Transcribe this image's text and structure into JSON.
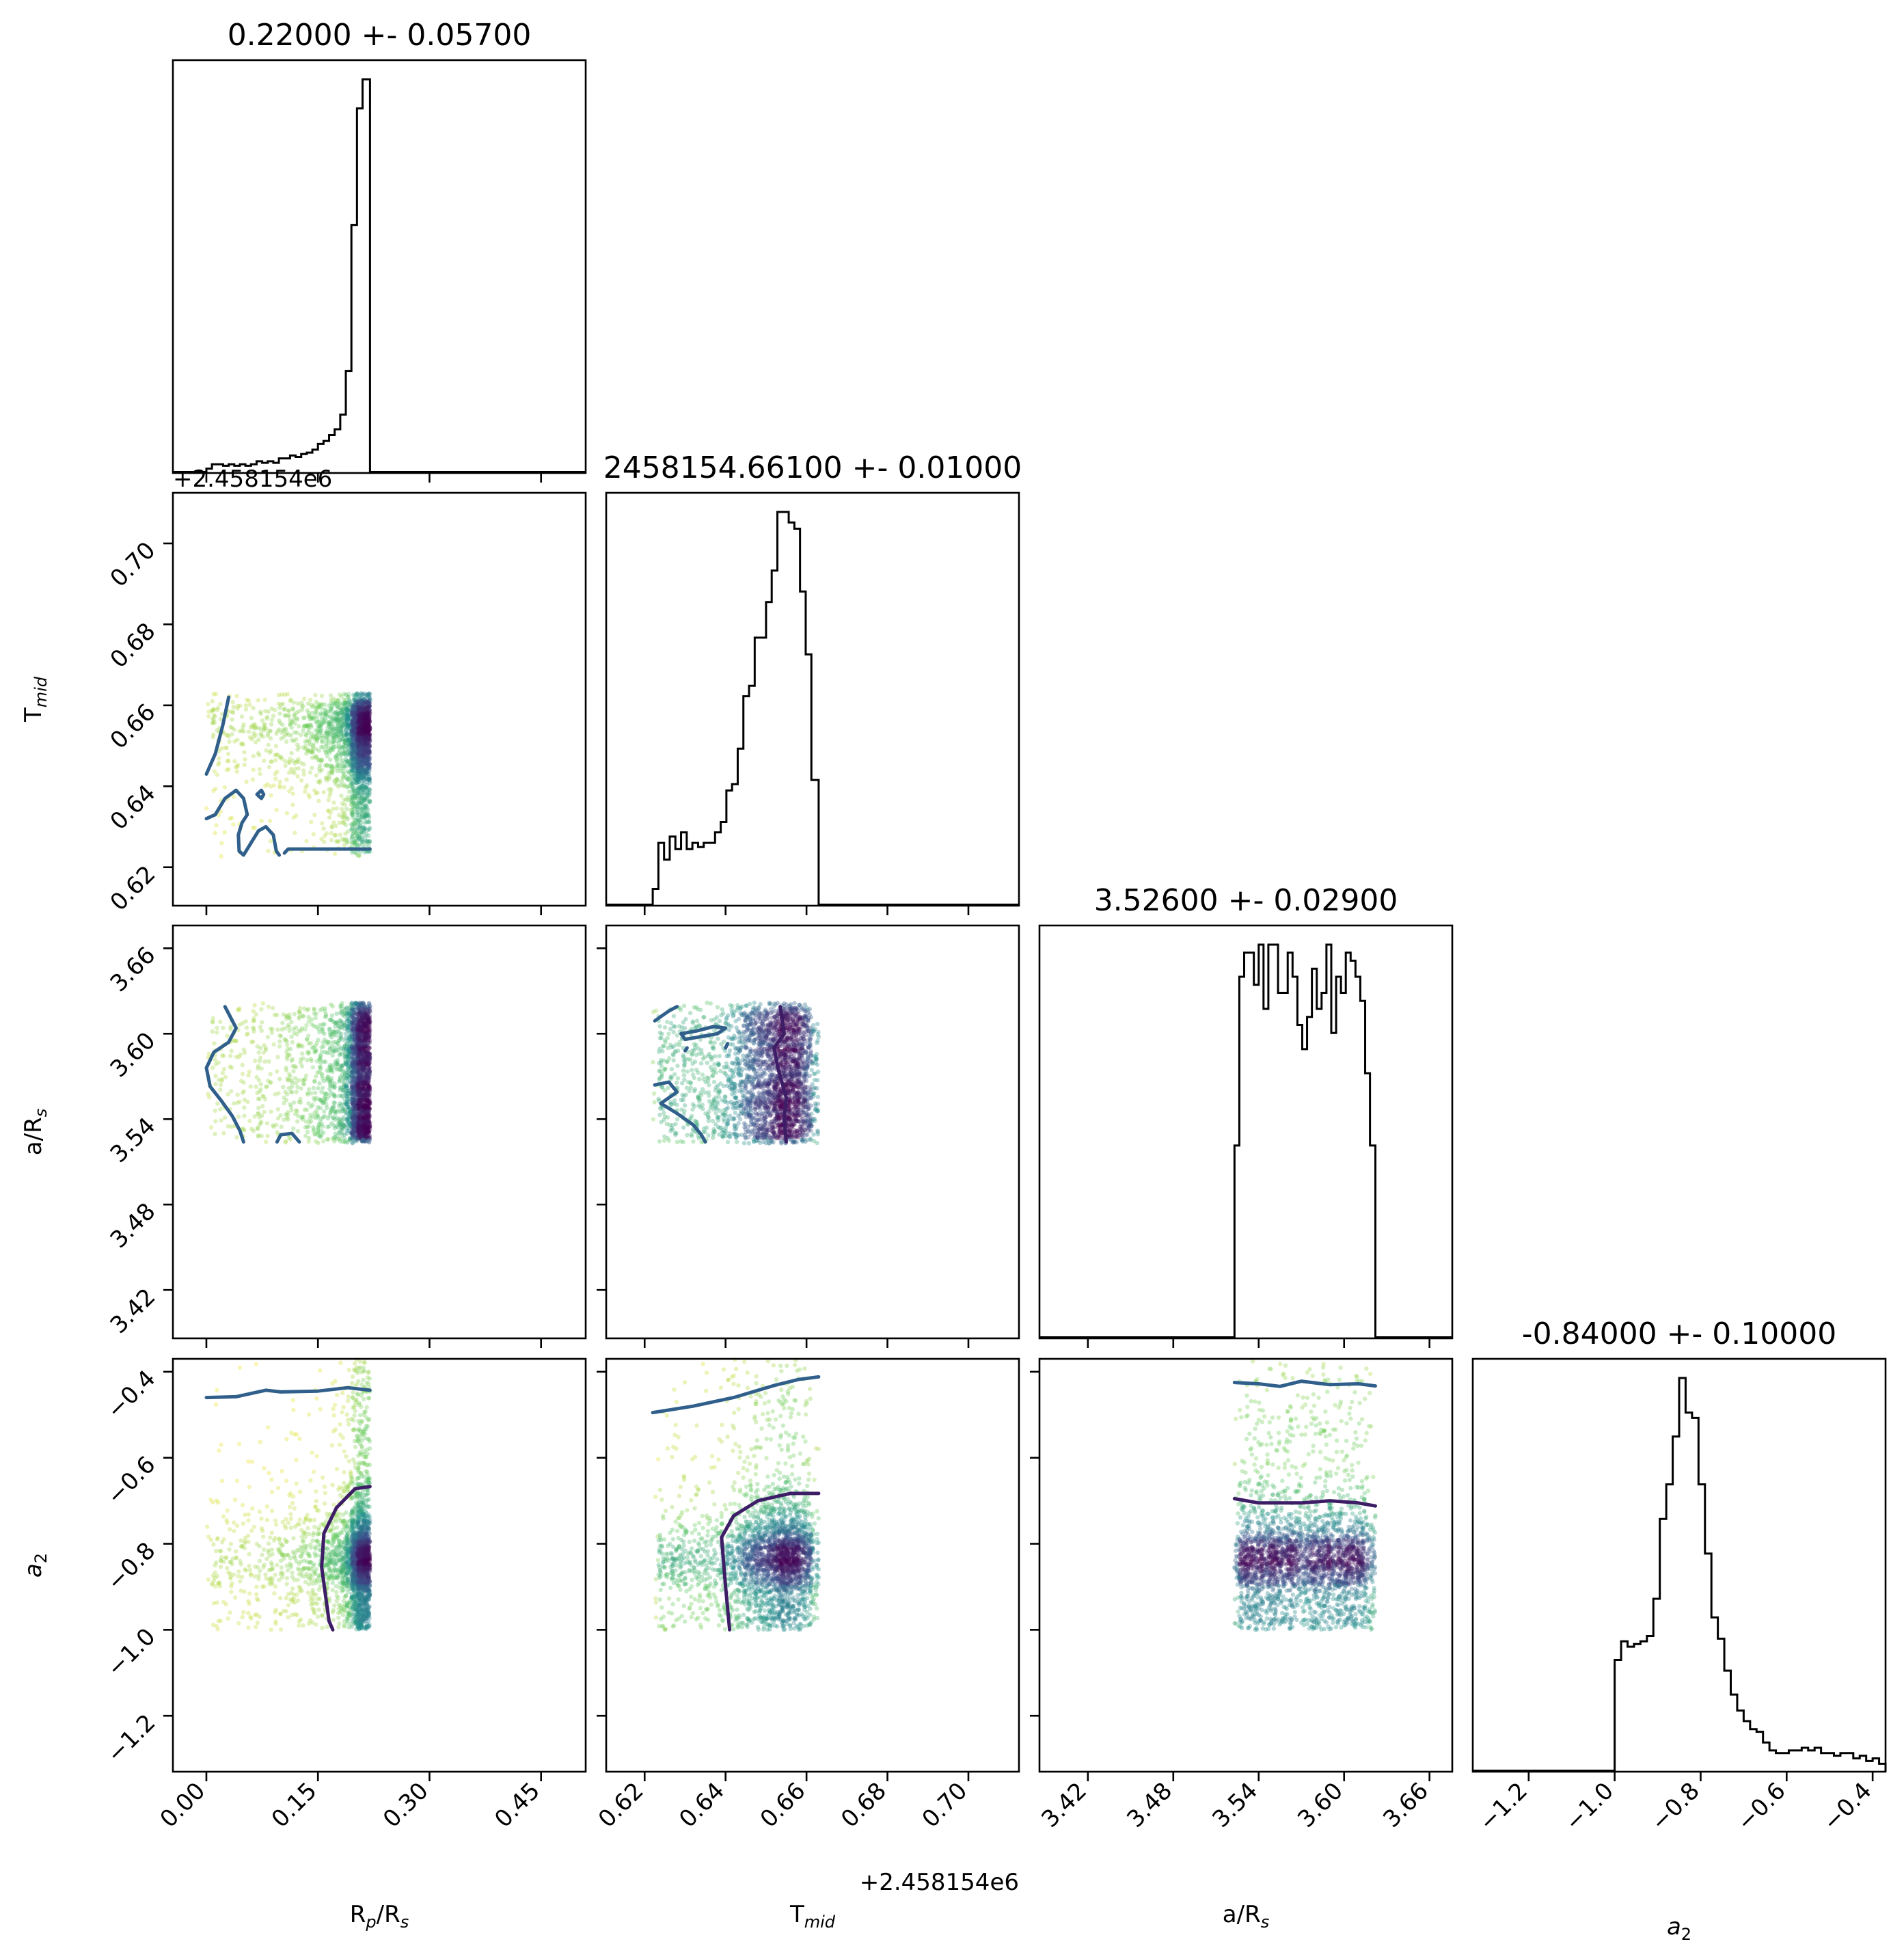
{
  "chart_data": {
    "type": "corner",
    "params": [
      {
        "key": "rp",
        "title": "0.22000 +- 0.05700",
        "xlabel": "R$_p$/R$_s$",
        "xlabel_text": "Rp/Rs",
        "xlim": [
          -0.045,
          0.51
        ],
        "ticks": [
          0.0,
          0.15,
          0.3,
          0.45
        ],
        "tick_labels": [
          "0.00",
          "0.15",
          "0.30",
          "0.45"
        ],
        "sample_range": [
          0.0,
          0.22
        ],
        "hist": {
          "edges": [
            0.0,
            0.0075,
            0.015,
            0.0225,
            0.03,
            0.0375,
            0.045,
            0.0525,
            0.06,
            0.0675,
            0.075,
            0.0825,
            0.09,
            0.0975,
            0.105,
            0.1125,
            0.12,
            0.1275,
            0.135,
            0.1425,
            0.15,
            0.1575,
            0.165,
            0.1725,
            0.18,
            0.1875,
            0.195,
            0.2025,
            0.21,
            0.22
          ],
          "counts": [
            3,
            6,
            6,
            5,
            6,
            5,
            6,
            5,
            6,
            8,
            7,
            8,
            7,
            10,
            10,
            12,
            11,
            13,
            14,
            16,
            20,
            22,
            26,
            30,
            40,
            70,
            170,
            250,
            270
          ]
        }
      },
      {
        "key": "tmid",
        "title": "2458154.66100 +- 0.01000",
        "ylabel": "T$_{mid}$",
        "ylabel_text": "Tmid",
        "xlabel_text": "Tmid",
        "offset_label": "+2.458154e6",
        "lim": [
          0.6105,
          0.7125
        ],
        "ticks": [
          0.62,
          0.64,
          0.66,
          0.68,
          0.7
        ],
        "tick_labels": [
          "0.62",
          "0.64",
          "0.66",
          "0.68",
          "0.70"
        ],
        "sample_range": [
          0.622,
          0.663
        ],
        "hist": {
          "edges": [
            0.622,
            0.6234,
            0.6248,
            0.6262,
            0.6276,
            0.629,
            0.6304,
            0.6318,
            0.6332,
            0.6346,
            0.636,
            0.6374,
            0.6388,
            0.6402,
            0.6416,
            0.643,
            0.6444,
            0.6458,
            0.6472,
            0.6486,
            0.65,
            0.6514,
            0.6528,
            0.6542,
            0.6556,
            0.657,
            0.6584,
            0.6598,
            0.6612,
            0.663
          ],
          "counts": [
            8,
            30,
            22,
            33,
            27,
            35,
            27,
            30,
            28,
            30,
            30,
            35,
            40,
            55,
            58,
            75,
            100,
            105,
            128,
            128,
            145,
            160,
            188,
            188,
            183,
            180,
            150,
            120,
            60
          ]
        }
      },
      {
        "key": "ars",
        "title": "3.52600 +- 0.02900",
        "ylabel": "a/R$_s$",
        "ylabel_text": "a/Rs",
        "xlabel_text": "a/Rs",
        "lim": [
          3.386,
          3.676
        ],
        "ticks": [
          3.42,
          3.48,
          3.54,
          3.6,
          3.66
        ],
        "tick_labels": [
          "3.42",
          "3.48",
          "3.54",
          "3.60",
          "3.66"
        ],
        "sample_range": [
          3.523,
          3.622
        ],
        "hist": {
          "edges": [
            3.523,
            3.5264,
            3.5298,
            3.5332,
            3.5366,
            3.54,
            3.5434,
            3.5468,
            3.5502,
            3.5536,
            3.557,
            3.5604,
            3.5638,
            3.5672,
            3.5706,
            3.574,
            3.5774,
            3.5808,
            3.5842,
            3.5876,
            3.591,
            3.5944,
            3.5978,
            3.6012,
            3.6046,
            3.608,
            3.6114,
            3.6148,
            3.6182,
            3.622
          ],
          "counts": [
            120,
            225,
            240,
            240,
            220,
            245,
            205,
            245,
            245,
            215,
            215,
            240,
            225,
            195,
            180,
            200,
            230,
            205,
            215,
            245,
            190,
            225,
            215,
            240,
            235,
            225,
            210,
            165,
            120
          ]
        }
      },
      {
        "key": "a2",
        "title": "-0.84000 +- 0.10000",
        "ylabel": "$a_2$",
        "ylabel_text": "a2",
        "xlabel_text": "a2",
        "lim": [
          -1.33,
          -0.37
        ],
        "ticks": [
          -1.2,
          -1.0,
          -0.8,
          -0.6,
          -0.4
        ],
        "tick_labels": [
          "−1.2",
          "−1.0",
          "−0.8",
          "−0.6",
          "−0.4"
        ],
        "sample_range": [
          -1.0,
          -0.37
        ],
        "hist": {
          "edges": [
            -1.0,
            -0.985,
            -0.97,
            -0.955,
            -0.94,
            -0.925,
            -0.91,
            -0.895,
            -0.88,
            -0.865,
            -0.85,
            -0.835,
            -0.82,
            -0.805,
            -0.79,
            -0.775,
            -0.76,
            -0.745,
            -0.73,
            -0.715,
            -0.7,
            -0.685,
            -0.67,
            -0.655,
            -0.64,
            -0.625,
            -0.61,
            -0.595,
            -0.58,
            -0.565,
            -0.55,
            -0.535,
            -0.52,
            -0.505,
            -0.49,
            -0.475,
            -0.46,
            -0.445,
            -0.43,
            -0.415,
            -0.4,
            -0.385,
            -0.37
          ],
          "counts": [
            42,
            49,
            47,
            48,
            49,
            51,
            65,
            95,
            108,
            126,
            148,
            135,
            133,
            108,
            82,
            58,
            50,
            38,
            29,
            23,
            19,
            16,
            15,
            11,
            8,
            7,
            7,
            8,
            8,
            9,
            8,
            9,
            7,
            7,
            6,
            7,
            7,
            5,
            6,
            4,
            5,
            3
          ]
        }
      }
    ],
    "contours": {
      "1,0": [
        {
          "level": 0,
          "pts": [
            [
              0.0,
              0.643
            ],
            [
              0.012,
              0.648
            ],
            [
              0.022,
              0.655
            ],
            [
              0.03,
              0.662
            ]
          ]
        },
        {
          "level": 0,
          "pts": [
            [
              0.0,
              0.632
            ],
            [
              0.012,
              0.633
            ],
            [
              0.025,
              0.637
            ],
            [
              0.04,
              0.639
            ],
            [
              0.05,
              0.637
            ],
            [
              0.055,
              0.633
            ],
            [
              0.048,
              0.631
            ],
            [
              0.043,
              0.628
            ],
            [
              0.044,
              0.624
            ],
            [
              0.05,
              0.623
            ],
            [
              0.06,
              0.626
            ],
            [
              0.07,
              0.629
            ],
            [
              0.08,
              0.63
            ],
            [
              0.09,
              0.628
            ],
            [
              0.094,
              0.624
            ],
            [
              0.098,
              0.623
            ]
          ]
        },
        {
          "level": 0,
          "pts": [
            [
              0.105,
              0.6235
            ],
            [
              0.11,
              0.6245
            ],
            [
              0.13,
              0.6245
            ],
            [
              0.22,
              0.6245
            ]
          ]
        },
        {
          "level": 0,
          "pts": [
            [
              0.068,
              0.638
            ],
            [
              0.074,
              0.639
            ],
            [
              0.077,
              0.638
            ],
            [
              0.074,
              0.637
            ],
            [
              0.068,
              0.638
            ]
          ]
        }
      ],
      "2,0": [
        {
          "level": 0,
          "pts": [
            [
              0.025,
              3.619
            ],
            [
              0.04,
              3.604
            ],
            [
              0.03,
              3.594
            ],
            [
              0.01,
              3.587
            ],
            [
              0.0,
              3.576
            ],
            [
              0.005,
              3.563
            ],
            [
              0.02,
              3.553
            ],
            [
              0.035,
              3.542
            ],
            [
              0.045,
              3.532
            ],
            [
              0.05,
              3.524
            ]
          ]
        },
        {
          "level": 0,
          "pts": [
            [
              0.095,
              3.524
            ],
            [
              0.1,
              3.529
            ],
            [
              0.115,
              3.53
            ],
            [
              0.125,
              3.524
            ]
          ]
        }
      ],
      "2,1": [
        {
          "level": 0,
          "pts": [
            [
              0.6225,
              3.609
            ],
            [
              0.626,
              3.616
            ],
            [
              0.628,
              3.619
            ]
          ]
        },
        {
          "level": 0,
          "pts": [
            [
              0.6225,
              3.564
            ],
            [
              0.626,
              3.566
            ],
            [
              0.628,
              3.559
            ],
            [
              0.624,
              3.551
            ],
            [
              0.628,
              3.544
            ],
            [
              0.632,
              3.536
            ],
            [
              0.634,
              3.529
            ],
            [
              0.635,
              3.524
            ]
          ]
        },
        {
          "level": 0,
          "pts": [
            [
              0.629,
              3.6
            ],
            [
              0.633,
              3.602
            ],
            [
              0.637,
              3.605
            ],
            [
              0.64,
              3.604
            ],
            [
              0.638,
              3.6
            ],
            [
              0.634,
              3.598
            ],
            [
              0.63,
              3.596
            ],
            [
              0.629,
              3.6
            ]
          ]
        },
        {
          "level": 0,
          "pts": [
            [
              0.64,
              3.59
            ],
            [
              0.6405,
              3.593
            ]
          ]
        },
        {
          "level": 0,
          "pts": [
            [
              0.63,
              3.588
            ],
            [
              0.6305,
              3.59
            ]
          ]
        },
        {
          "level": 1,
          "pts": [
            [
              0.6535,
              3.619
            ],
            [
              0.6545,
              3.6
            ],
            [
              0.652,
              3.59
            ],
            [
              0.653,
              3.575
            ],
            [
              0.655,
              3.555
            ],
            [
              0.6545,
              3.54
            ],
            [
              0.655,
              3.524
            ]
          ]
        }
      ],
      "3,0": [
        {
          "level": 0,
          "pts": [
            [
              0.0,
              -0.46
            ],
            [
              0.04,
              -0.458
            ],
            [
              0.08,
              -0.443
            ],
            [
              0.1,
              -0.447
            ],
            [
              0.15,
              -0.445
            ],
            [
              0.19,
              -0.437
            ],
            [
              0.22,
              -0.443
            ]
          ]
        },
        {
          "level": 1,
          "pts": [
            [
              0.22,
              -0.667
            ],
            [
              0.2,
              -0.672
            ],
            [
              0.175,
              -0.716
            ],
            [
              0.158,
              -0.776
            ],
            [
              0.155,
              -0.855
            ],
            [
              0.165,
              -0.98
            ],
            [
              0.17,
              -1.0
            ]
          ]
        }
      ],
      "3,1": [
        {
          "level": 0,
          "pts": [
            [
              0.622,
              -0.495
            ],
            [
              0.632,
              -0.48
            ],
            [
              0.642,
              -0.46
            ],
            [
              0.652,
              -0.432
            ],
            [
              0.658,
              -0.418
            ],
            [
              0.663,
              -0.412
            ]
          ]
        },
        {
          "level": 1,
          "pts": [
            [
              0.663,
              -0.683
            ],
            [
              0.656,
              -0.683
            ],
            [
              0.648,
              -0.7
            ],
            [
              0.642,
              -0.735
            ],
            [
              0.639,
              -0.785
            ],
            [
              0.64,
              -0.9
            ],
            [
              0.641,
              -1.0
            ]
          ]
        }
      ],
      "3,2": [
        {
          "level": 0,
          "pts": [
            [
              3.523,
              -0.425
            ],
            [
              3.54,
              -0.428
            ],
            [
              3.555,
              -0.434
            ],
            [
              3.57,
              -0.422
            ],
            [
              3.59,
              -0.43
            ],
            [
              3.61,
              -0.428
            ],
            [
              3.622,
              -0.433
            ]
          ]
        },
        {
          "level": 1,
          "pts": [
            [
              3.523,
              -0.695
            ],
            [
              3.54,
              -0.705
            ],
            [
              3.555,
              -0.705
            ],
            [
              3.57,
              -0.705
            ],
            [
              3.59,
              -0.7
            ],
            [
              3.61,
              -0.705
            ],
            [
              3.622,
              -0.712
            ]
          ]
        }
      ]
    },
    "point_colormap": "viridis",
    "contour_colors": [
      "#2f5f8a",
      "#3d1d66"
    ],
    "bins": 30
  }
}
